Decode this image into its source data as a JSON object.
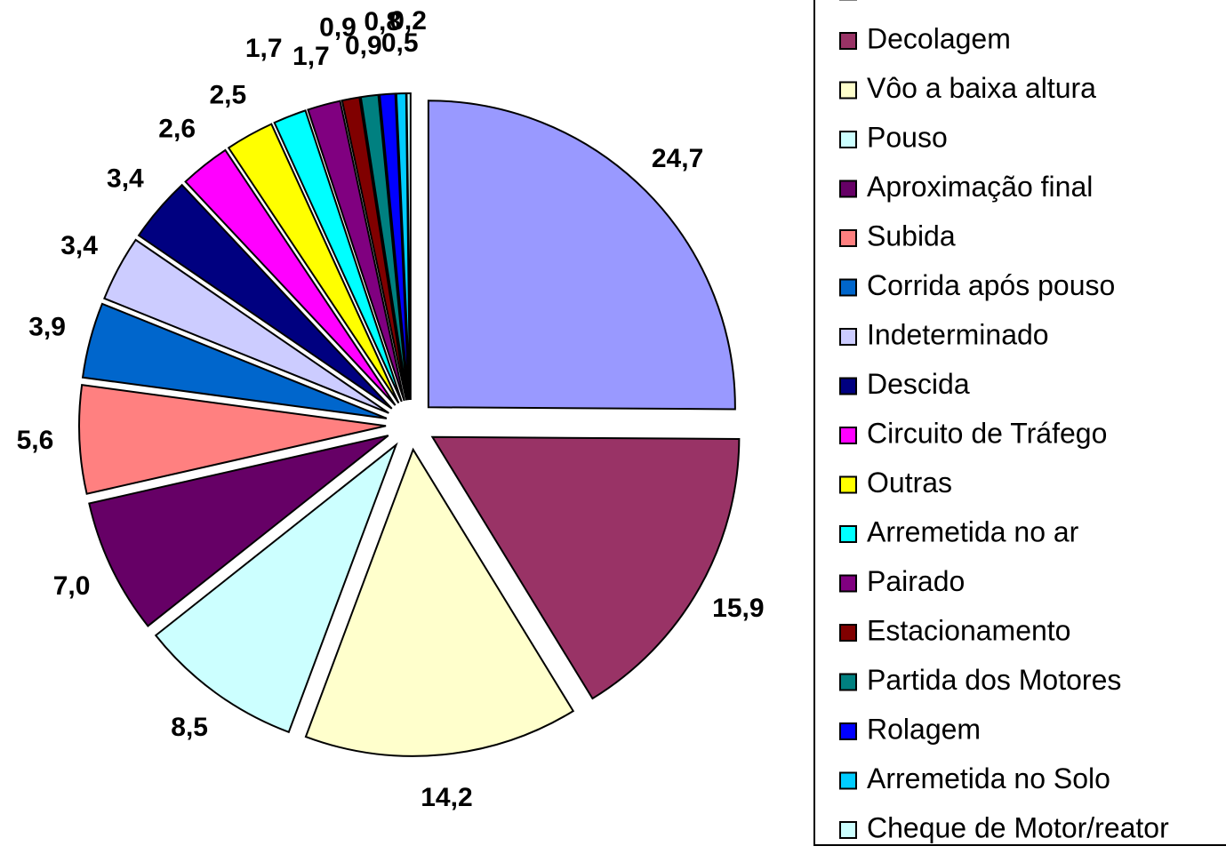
{
  "chart_data": {
    "type": "pie",
    "categories": [
      "Cruzeiro/Manobras",
      "Decolagem",
      "Vôo a baixa altura",
      "Pouso",
      "Aproximação final",
      "Subida",
      "Corrida após pouso",
      "Indeterminado",
      "Descida",
      "Circuito de Tráfego",
      "Outras",
      "Arremetida no ar",
      "Pairado",
      "Estacionamento",
      "Partida dos Motores",
      "Rolagem",
      "Arremetida no Solo",
      "Cheque de Motor/reator"
    ],
    "values": [
      24.7,
      15.9,
      14.2,
      8.5,
      7.0,
      5.6,
      3.9,
      3.4,
      3.4,
      2.6,
      2.5,
      1.7,
      1.7,
      0.9,
      0.9,
      0.8,
      0.5,
      0.2
    ],
    "value_labels": [
      "24,7",
      "15,9",
      "14,2",
      "8,5",
      "7,0",
      "5,6",
      "3,9",
      "3,4",
      "3,4",
      "2,6",
      "2,5",
      "1,7",
      "1,7",
      "0,9",
      "0,9",
      "0,8",
      "0,5",
      "0,2"
    ],
    "colors": [
      "#9999ff",
      "#993366",
      "#ffffcc",
      "#ccffff",
      "#660066",
      "#ff8080",
      "#0066cc",
      "#ccccff",
      "#000080",
      "#ff00ff",
      "#ffff00",
      "#00ffff",
      "#800080",
      "#800000",
      "#008080",
      "#0000ff",
      "#00ccff",
      "#ccffff"
    ],
    "legend": "right"
  }
}
